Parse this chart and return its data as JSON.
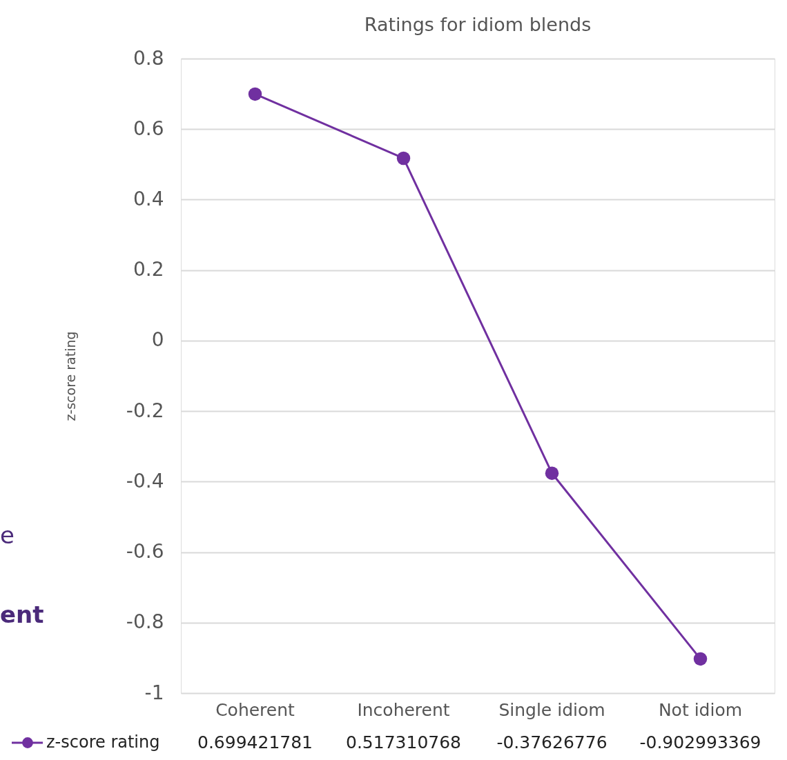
{
  "chart_data": {
    "type": "line",
    "title": "Ratings for idiom blends",
    "ylabel": "z-score rating",
    "categories": [
      "Coherent",
      "Incoherent",
      "Single idiom",
      "Not idiom"
    ],
    "series": [
      {
        "name": "z-score rating",
        "color": "#7030a0",
        "values": [
          0.699421781,
          0.517310768,
          -0.37626776,
          -0.902993369
        ]
      }
    ],
    "ylim": [
      -1,
      0.8
    ],
    "yticks": [
      -1,
      -0.8,
      -0.6,
      -0.4,
      -0.2,
      0,
      0.2,
      0.4,
      0.6,
      0.8
    ],
    "grid": true,
    "marker": "circle",
    "legend": "bottom",
    "data_labels": true,
    "annotations": [
      "e",
      "ent"
    ]
  }
}
